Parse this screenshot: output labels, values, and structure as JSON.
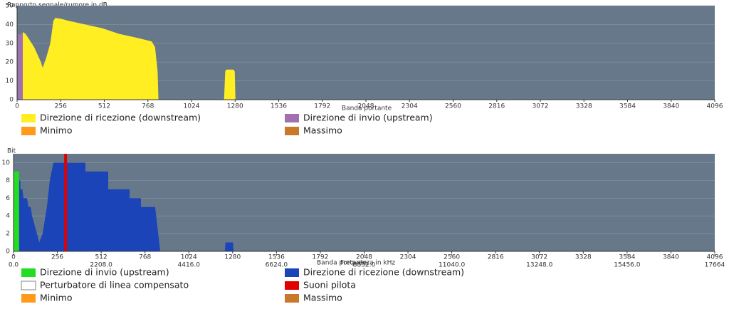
{
  "chart_data": [
    {
      "type": "area",
      "title": "Rapporto segnale/rumore in dB",
      "xlabel": "Banda portante",
      "xlim": [
        0,
        4096
      ],
      "xticks": [
        0,
        256,
        512,
        768,
        1024,
        1280,
        1536,
        1792,
        2048,
        2304,
        2560,
        2816,
        3072,
        3328,
        3584,
        3840,
        4096
      ],
      "ylim": [
        0,
        50
      ],
      "yticks": [
        0,
        10,
        20,
        30,
        40,
        50
      ],
      "grid": true,
      "series": [
        {
          "name": "Direzione di ricezione  (downstream)",
          "color": "#ffee22",
          "x": [
            33,
            33,
            50,
            100,
            140,
            150,
            170,
            195,
            213,
            225,
            260,
            300,
            400,
            500,
            600,
            700,
            790,
            810,
            825,
            830,
            null,
            1215,
            1222,
            1228,
            1270,
            1278,
            1282
          ],
          "values": [
            0,
            36,
            35,
            28,
            20,
            17,
            22,
            30,
            42,
            43.5,
            43,
            42,
            40,
            38,
            35,
            33,
            31,
            28,
            15,
            0,
            null,
            0,
            15,
            16,
            16,
            15,
            0
          ]
        },
        {
          "name": "Direzione di invio  (upstream)",
          "color": "#a070b0",
          "x": [
            4,
            4,
            33,
            33
          ],
          "values": [
            0,
            35,
            35,
            0
          ]
        },
        {
          "name": "Minimo",
          "color": "#ff9a1a",
          "x": [],
          "values": []
        },
        {
          "name": "Massimo",
          "color": "#c87a2a",
          "x": [],
          "values": []
        }
      ]
    },
    {
      "type": "area",
      "title": "Bit",
      "xlabel": "Banda portante",
      "x2label": "Frequenza in kHz",
      "xlim": [
        0,
        4096
      ],
      "xticks": [
        0,
        256,
        512,
        768,
        1024,
        1280,
        1536,
        1792,
        2048,
        2304,
        2560,
        2816,
        3072,
        3328,
        3584,
        3840,
        4096
      ],
      "x2lim": [
        0,
        17664
      ],
      "x2ticks": [
        {
          "value": 0,
          "label": "0.0"
        },
        {
          "value": 2208,
          "label": "2208.0"
        },
        {
          "value": 4416,
          "label": "4416.0"
        },
        {
          "value": 6624,
          "label": "6624.0"
        },
        {
          "value": 8832,
          "label": "8832.0"
        },
        {
          "value": 11040,
          "label": "11040.0"
        },
        {
          "value": 13248,
          "label": "13248.0"
        },
        {
          "value": 15456,
          "label": "15456.0"
        },
        17664
      ],
      "ylim": [
        0,
        11
      ],
      "yticks": [
        0,
        2,
        4,
        6,
        8,
        10
      ],
      "grid": true,
      "pilot_tones": [
        304
      ],
      "series": [
        {
          "name": "Direzione di invio  (upstream)",
          "color": "#22dd22",
          "x": [
            0,
            0,
            32,
            32
          ],
          "values": [
            0,
            9,
            9,
            0
          ]
        },
        {
          "name": "Direzione di ricezione  (downstream)",
          "color": "#1a44b8",
          "x": [
            33,
            33,
            40,
            40,
            52,
            58,
            79,
            87,
            100,
            108,
            137,
            150,
            170,
            195,
            212,
            233,
            420,
            420,
            553,
            553,
            678,
            678,
            744,
            744,
            827,
            857,
            null,
            1235,
            1238,
            1282,
            1285
          ],
          "values": [
            0,
            8,
            8,
            7,
            7,
            6,
            6,
            5,
            5,
            4,
            2,
            1,
            2,
            5,
            8,
            10,
            10,
            9,
            9,
            7,
            7,
            6,
            6,
            5,
            5,
            0,
            null,
            0,
            1,
            1,
            0
          ]
        },
        {
          "name": "Perturbatore di linea compensato",
          "color": "#ffffff",
          "x": [],
          "values": []
        },
        {
          "name": "Suoni pilota",
          "color": "#e00000",
          "x": [],
          "values": []
        },
        {
          "name": "Minimo",
          "color": "#ff9a1a",
          "x": [],
          "values": []
        },
        {
          "name": "Massimo",
          "color": "#c87a2a",
          "x": [],
          "values": []
        }
      ]
    }
  ]
}
